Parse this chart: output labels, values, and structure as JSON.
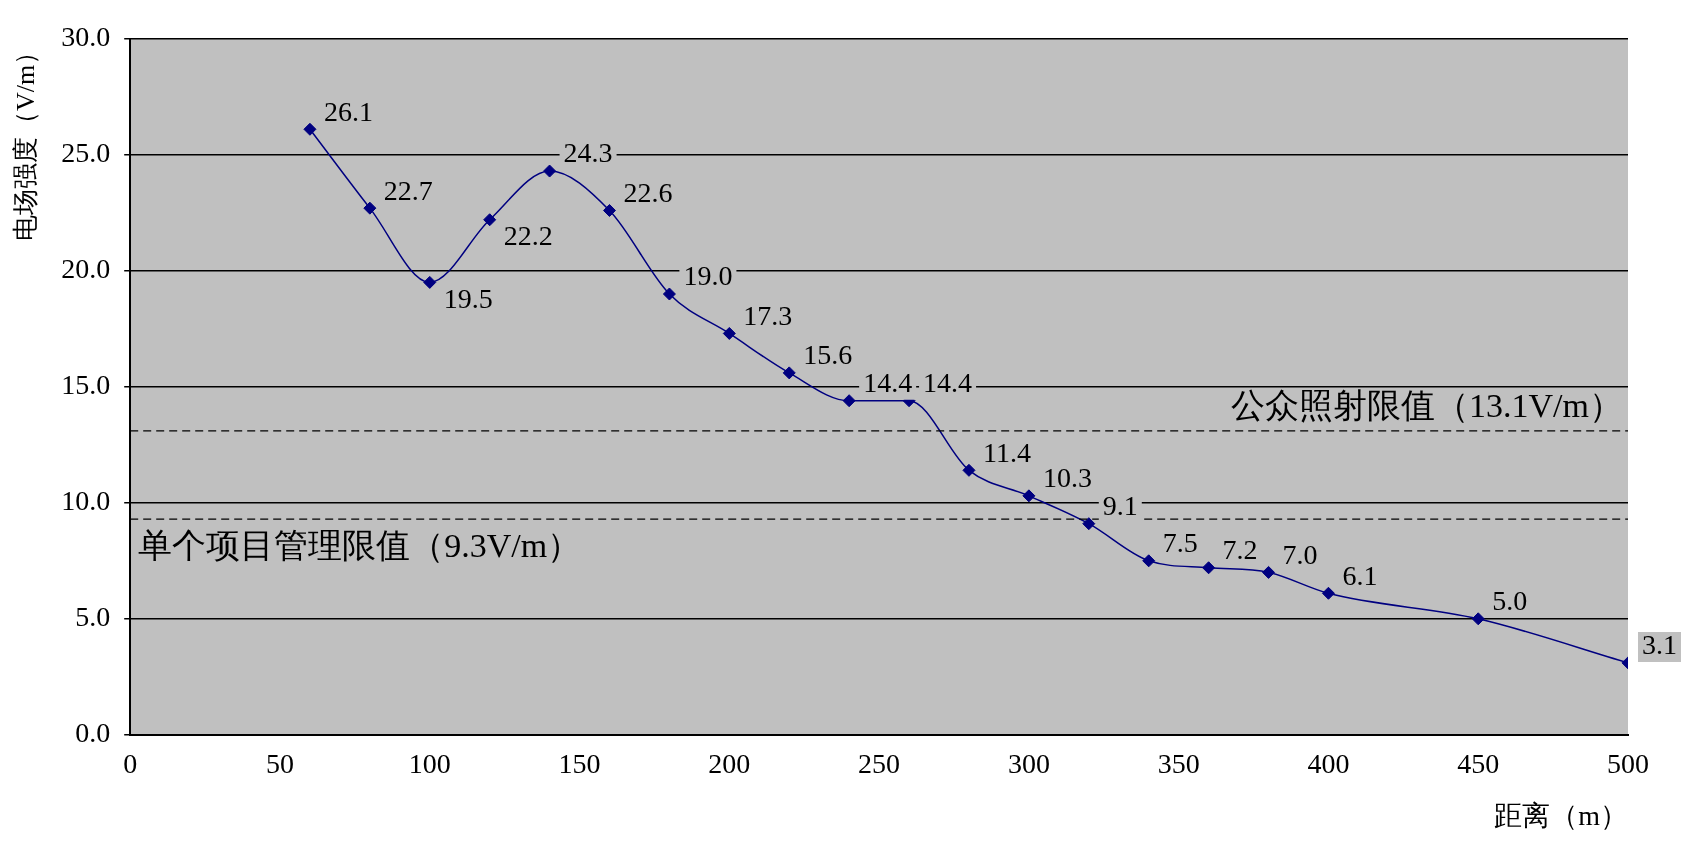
{
  "chart_data": {
    "type": "line",
    "xlabel": "距离（m）",
    "ylabel": "电场强度（V/m）",
    "x": [
      60,
      80,
      100,
      120,
      140,
      160,
      180,
      200,
      220,
      240,
      260,
      280,
      300,
      320,
      340,
      360,
      380,
      400,
      450,
      500
    ],
    "series": [
      {
        "color": "#000080",
        "values": [
          26.1,
          22.7,
          19.5,
          22.2,
          24.3,
          22.6,
          19.0,
          17.3,
          15.6,
          14.4,
          14.4,
          11.4,
          10.3,
          9.1,
          7.5,
          7.2,
          7.0,
          6.1,
          5.0,
          3.1
        ],
        "value_labels": [
          "26.1",
          "22.7",
          "19.5",
          "22.2",
          "24.3",
          "22.6",
          "19.0",
          "17.3",
          "15.6",
          "14.4",
          "14.4",
          "11.4",
          "10.3",
          "9.1",
          "7.5",
          "7.2",
          "7.0",
          "6.1",
          "5.0",
          "3.1"
        ]
      }
    ],
    "xlim": [
      0,
      500
    ],
    "xticks": [
      0,
      50,
      100,
      150,
      200,
      250,
      300,
      350,
      400,
      450,
      500
    ],
    "ylim": [
      0,
      30
    ],
    "yticks": [
      {
        "value": 0,
        "label": "0.0"
      },
      {
        "value": 5,
        "label": "5.0"
      },
      {
        "value": 10,
        "label": "10.0"
      },
      {
        "value": 15,
        "label": "15.0"
      },
      {
        "value": 20,
        "label": "20.0"
      },
      {
        "value": 25,
        "label": "25.0"
      },
      {
        "value": 30,
        "label": "30.0"
      }
    ],
    "grid": "y",
    "marker": "diamond",
    "line_style": "solid",
    "legend": false,
    "ref_lines": [
      {
        "axis": "y",
        "value": 13.1,
        "label": "公众照射限值（13.1V/m）",
        "line_style": "dashed",
        "color": "#000000"
      },
      {
        "axis": "y",
        "value": 9.3,
        "label": "单个项目管理限值（9.3V/m）",
        "line_style": "dashed",
        "color": "#000000"
      }
    ]
  }
}
